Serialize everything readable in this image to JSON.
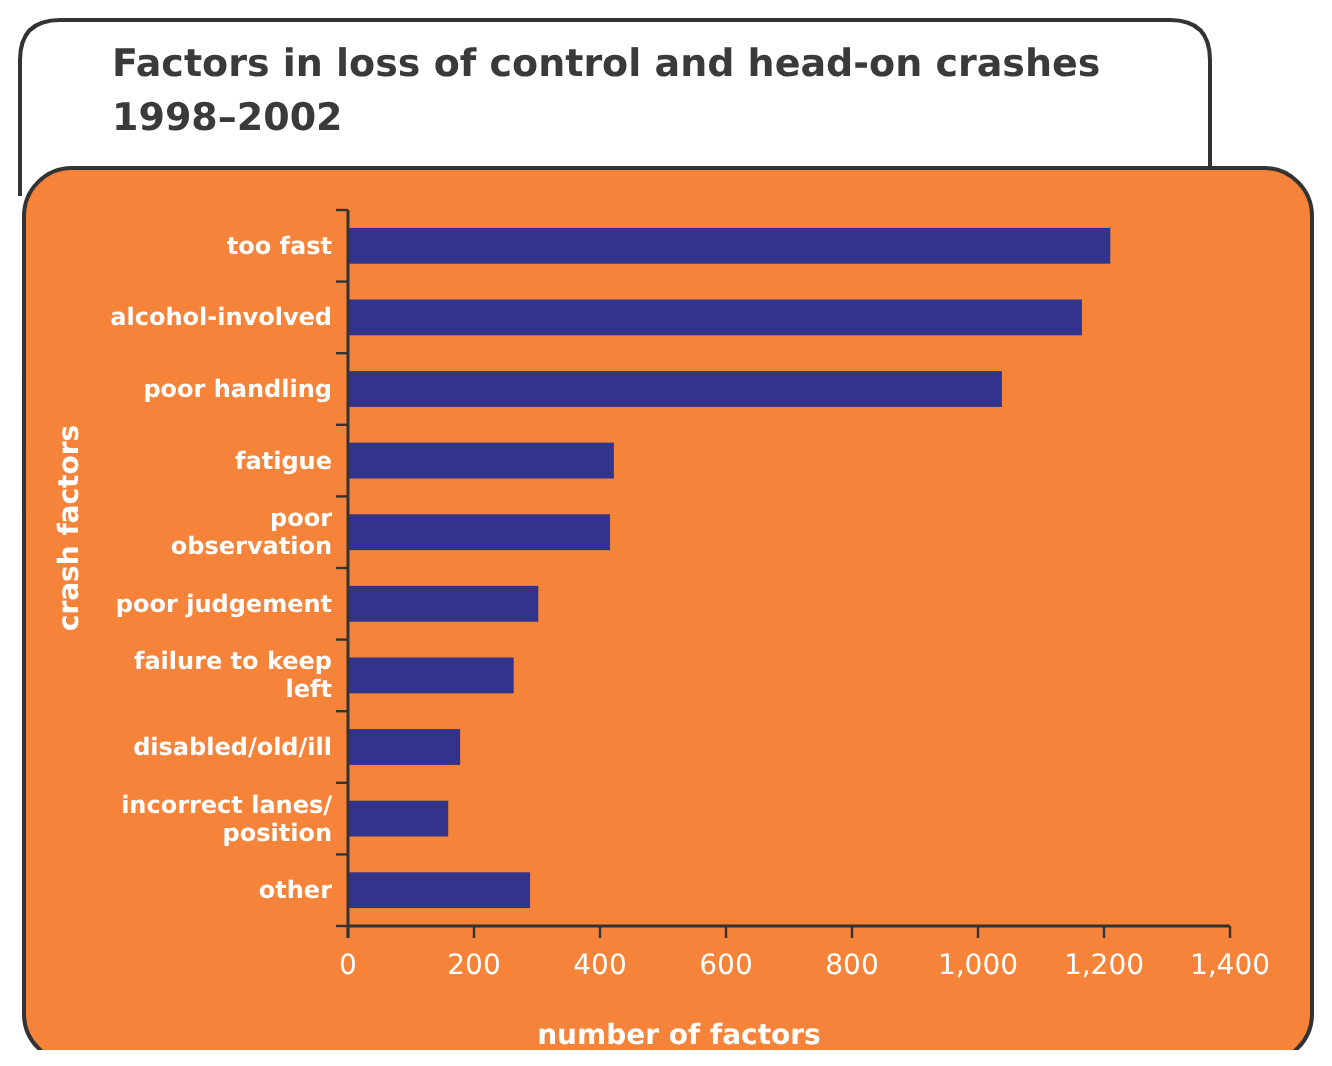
{
  "chart_data": {
    "type": "bar",
    "orientation": "horizontal",
    "title": "Factors in loss of control and head-on crashes 1998–2002",
    "xlabel": "number of factors",
    "ylabel": "crash factors",
    "categories": [
      "too fast",
      "alcohol-involved",
      "poor handling",
      "fatigue",
      "poor observation",
      "poor judgement",
      "failure to keep left",
      "disabled/old/ill",
      "incorrect lanes/position",
      "other"
    ],
    "values": [
      1210,
      1165,
      1038,
      422,
      416,
      302,
      263,
      178,
      159,
      289
    ],
    "color": "#31348a",
    "xlim": [
      0,
      1400
    ],
    "xticks": [
      0,
      200,
      400,
      600,
      800,
      {
        "value": 1000,
        "label": "1,000"
      },
      {
        "value": 1200,
        "label": "1,200"
      },
      {
        "value": 1400,
        "label": "1,400"
      }
    ]
  }
}
